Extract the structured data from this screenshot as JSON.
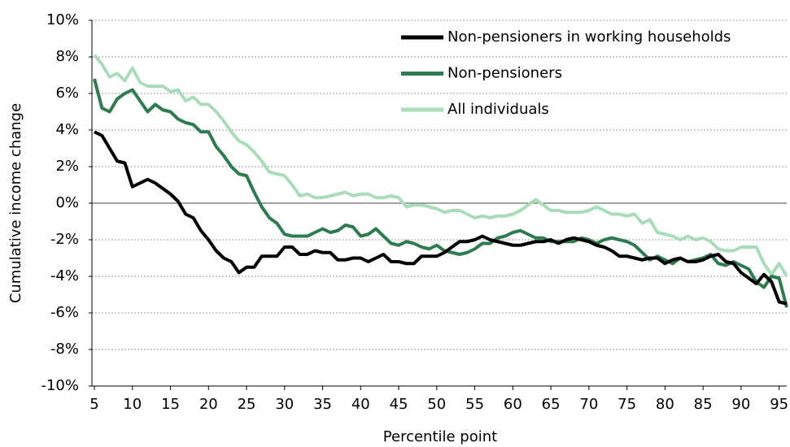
{
  "chart_data": {
    "type": "line",
    "y_label": "Cumulative income change",
    "x_label": "Percentile point",
    "x": [
      5,
      6,
      7,
      8,
      9,
      10,
      11,
      12,
      13,
      14,
      15,
      16,
      17,
      18,
      19,
      20,
      21,
      22,
      23,
      24,
      25,
      26,
      27,
      28,
      29,
      30,
      31,
      32,
      33,
      34,
      35,
      36,
      37,
      38,
      39,
      40,
      41,
      42,
      43,
      44,
      45,
      46,
      47,
      48,
      49,
      50,
      51,
      52,
      53,
      54,
      55,
      56,
      57,
      58,
      59,
      60,
      61,
      62,
      63,
      64,
      65,
      66,
      67,
      68,
      69,
      70,
      71,
      72,
      73,
      74,
      75,
      76,
      77,
      78,
      79,
      80,
      81,
      82,
      83,
      84,
      85,
      86,
      87,
      88,
      89,
      90,
      91,
      92,
      93,
      94,
      95,
      96
    ],
    "series": [
      {
        "name": "Non-pensioners in working households",
        "color": "#000000",
        "values": [
          3.9,
          3.7,
          3.0,
          2.3,
          2.2,
          0.9,
          1.1,
          1.3,
          1.1,
          0.8,
          0.5,
          0.1,
          -0.6,
          -0.8,
          -1.5,
          -2.0,
          -2.6,
          -3.0,
          -3.2,
          -3.8,
          -3.5,
          -3.5,
          -2.9,
          -2.9,
          -2.9,
          -2.4,
          -2.4,
          -2.8,
          -2.8,
          -2.6,
          -2.7,
          -2.7,
          -3.1,
          -3.1,
          -3.0,
          -3.0,
          -3.2,
          -3.0,
          -2.8,
          -3.2,
          -3.2,
          -3.3,
          -3.3,
          -2.9,
          -2.9,
          -2.9,
          -2.7,
          -2.4,
          -2.1,
          -2.1,
          -2.0,
          -1.8,
          -2.0,
          -2.1,
          -2.2,
          -2.3,
          -2.3,
          -2.2,
          -2.1,
          -2.1,
          -2.0,
          -2.2,
          -2.0,
          -1.9,
          -2.0,
          -2.1,
          -2.3,
          -2.4,
          -2.6,
          -2.9,
          -2.9,
          -3.0,
          -3.1,
          -3.0,
          -3.0,
          -3.3,
          -3.1,
          -3.0,
          -3.2,
          -3.2,
          -3.1,
          -2.9,
          -2.8,
          -3.2,
          -3.3,
          -3.8,
          -4.1,
          -4.4,
          -3.9,
          -4.3,
          -5.4,
          -5.5
        ]
      },
      {
        "name": "Non-pensioners",
        "color": "#2e7b50",
        "values": [
          6.8,
          5.2,
          5.0,
          5.7,
          6.0,
          6.2,
          5.6,
          5.0,
          5.4,
          5.1,
          5.0,
          4.6,
          4.4,
          4.3,
          3.9,
          3.9,
          3.1,
          2.6,
          2.0,
          1.6,
          1.5,
          0.6,
          -0.2,
          -0.8,
          -1.1,
          -1.7,
          -1.8,
          -1.8,
          -1.8,
          -1.6,
          -1.4,
          -1.6,
          -1.5,
          -1.2,
          -1.3,
          -1.8,
          -1.7,
          -1.4,
          -1.8,
          -2.2,
          -2.3,
          -2.1,
          -2.2,
          -2.4,
          -2.5,
          -2.3,
          -2.6,
          -2.7,
          -2.8,
          -2.7,
          -2.5,
          -2.2,
          -2.2,
          -1.9,
          -1.8,
          -1.6,
          -1.5,
          -1.7,
          -1.9,
          -1.9,
          -2.1,
          -2.1,
          -2.1,
          -2.1,
          -1.9,
          -2.0,
          -2.2,
          -2.0,
          -1.9,
          -2.0,
          -2.1,
          -2.3,
          -2.7,
          -3.1,
          -2.9,
          -3.1,
          -3.3,
          -3.0,
          -3.2,
          -3.1,
          -3.0,
          -2.8,
          -3.3,
          -3.4,
          -3.2,
          -3.4,
          -3.6,
          -4.3,
          -4.6,
          -4.0,
          -4.1,
          -5.7
        ]
      },
      {
        "name": "All individuals",
        "color": "#a9dcb9",
        "values": [
          8.1,
          7.6,
          6.9,
          7.1,
          6.7,
          7.4,
          6.6,
          6.4,
          6.4,
          6.4,
          6.1,
          6.2,
          5.6,
          5.8,
          5.4,
          5.4,
          5.0,
          4.5,
          3.9,
          3.4,
          3.2,
          2.8,
          2.3,
          1.7,
          1.6,
          1.5,
          1.0,
          0.4,
          0.5,
          0.3,
          0.3,
          0.4,
          0.5,
          0.6,
          0.4,
          0.5,
          0.5,
          0.3,
          0.3,
          0.4,
          0.3,
          -0.2,
          -0.1,
          -0.1,
          -0.2,
          -0.3,
          -0.5,
          -0.4,
          -0.4,
          -0.6,
          -0.8,
          -0.7,
          -0.8,
          -0.7,
          -0.7,
          -0.6,
          -0.4,
          -0.1,
          0.2,
          -0.1,
          -0.4,
          -0.4,
          -0.5,
          -0.5,
          -0.5,
          -0.4,
          -0.2,
          -0.4,
          -0.6,
          -0.6,
          -0.7,
          -0.6,
          -1.1,
          -0.9,
          -1.6,
          -1.7,
          -1.8,
          -2.0,
          -1.8,
          -2.0,
          -1.9,
          -2.1,
          -2.5,
          -2.6,
          -2.6,
          -2.4,
          -2.4,
          -2.4,
          -3.3,
          -3.9,
          -3.3,
          -4.0
        ]
      }
    ],
    "xlim": [
      5,
      96
    ],
    "xticks": [
      5,
      10,
      15,
      20,
      25,
      30,
      35,
      40,
      45,
      50,
      55,
      60,
      65,
      70,
      75,
      80,
      85,
      90,
      95
    ],
    "ylim": [
      -10,
      10
    ],
    "yticks": [
      {
        "value": -10,
        "label": "-10%"
      },
      {
        "value": -8,
        "label": "-8%"
      },
      {
        "value": -6,
        "label": "-6%"
      },
      {
        "value": -4,
        "label": "-4%"
      },
      {
        "value": -2,
        "label": "-2%"
      },
      {
        "value": 0,
        "label": "0%"
      },
      {
        "value": 2,
        "label": "2%"
      },
      {
        "value": 4,
        "label": "4%"
      },
      {
        "value": 6,
        "label": "6%"
      },
      {
        "value": 8,
        "label": "8%"
      },
      {
        "value": 10,
        "label": "10%"
      }
    ],
    "grid": true,
    "legend": "upper right"
  }
}
